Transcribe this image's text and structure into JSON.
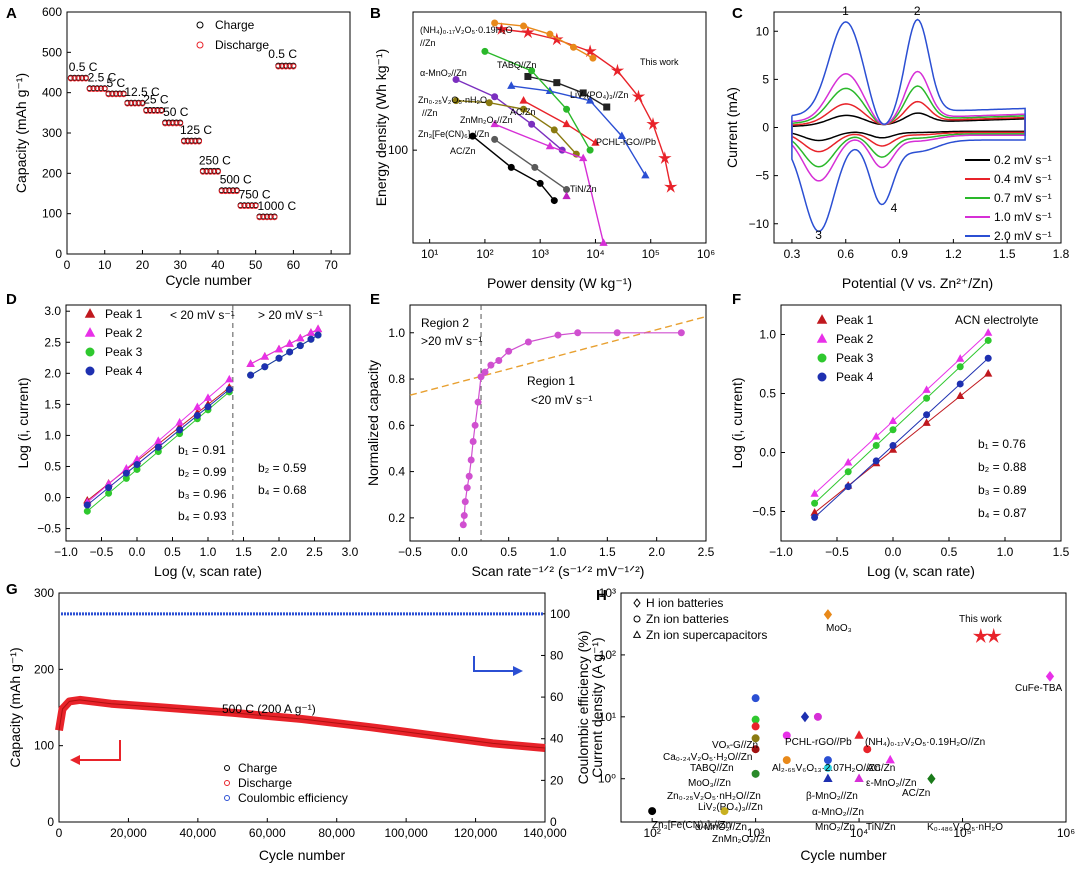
{
  "chart_data": [
    {
      "panel": "A",
      "type": "scatter",
      "xlabel": "Cycle number",
      "ylabel": "Capacity (mAh g⁻¹)",
      "xlim": [
        0,
        75
      ],
      "ylim": [
        0,
        600
      ],
      "xticks": [
        0,
        10,
        20,
        30,
        40,
        50,
        60,
        70
      ],
      "yticks": [
        0,
        100,
        200,
        300,
        400,
        500,
        600
      ],
      "legend": [
        "Charge",
        "Discharge"
      ],
      "rates": [
        {
          "label": "0.5 C",
          "x0": 1,
          "x1": 5,
          "value": 436
        },
        {
          "label": "2.5 C",
          "x0": 6,
          "x1": 10,
          "value": 410
        },
        {
          "label": "5 C",
          "x0": 11,
          "x1": 15,
          "value": 397
        },
        {
          "label": "12.5 C",
          "x0": 16,
          "x1": 20,
          "value": 374
        },
        {
          "label": "25 C",
          "x0": 21,
          "x1": 25,
          "value": 356
        },
        {
          "label": "50 C",
          "x0": 26,
          "x1": 30,
          "value": 325
        },
        {
          "label": "125 C",
          "x0": 31,
          "x1": 35,
          "value": 280
        },
        {
          "label": "250 C",
          "x0": 36,
          "x1": 40,
          "value": 205
        },
        {
          "label": "500 C",
          "x0": 41,
          "x1": 45,
          "value": 157
        },
        {
          "label": "750 C",
          "x0": 46,
          "x1": 50,
          "value": 120
        },
        {
          "label": "1000 C",
          "x0": 51,
          "x1": 55,
          "value": 92
        },
        {
          "label": "0.5 C",
          "x0": 56,
          "x1": 60,
          "value": 466
        }
      ]
    },
    {
      "panel": "B",
      "type": "line",
      "xlabel": "Power density (W kg⁻¹)",
      "ylabel": "Energy density (Wh kg⁻¹)",
      "xscale": "log",
      "yscale": "log",
      "xlim": [
        5,
        1000000
      ],
      "ylim": [
        30,
        600
      ],
      "xticks": [
        "10¹",
        "10²",
        "10³",
        "10⁴",
        "10⁵",
        "10⁶"
      ],
      "yticks": [
        "100"
      ],
      "series": [
        {
          "name": "This work",
          "color": "#e8232a",
          "marker": "star",
          "x": [
            200,
            600,
            2000,
            8000,
            25000,
            60000,
            110000,
            180000,
            230000
          ],
          "y": [
            480,
            460,
            420,
            360,
            280,
            200,
            140,
            90,
            62
          ]
        },
        {
          "name": "(NH₄)₀.₁₇V₂O₅·0.19H₂O//Zn",
          "color": "#e8891a",
          "marker": "circle",
          "x": [
            150,
            500,
            1500,
            4000,
            9000
          ],
          "y": [
            520,
            500,
            450,
            380,
            330
          ]
        },
        {
          "name": "TABQ//Zn",
          "color": "#222222",
          "marker": "square",
          "x": [
            600,
            2000,
            6000,
            16000
          ],
          "y": [
            260,
            240,
            210,
            175
          ]
        },
        {
          "name": "LiV₂(PO₄)₃//Zn",
          "color": "#2b4fd3",
          "marker": "triangle",
          "x": [
            300,
            1500,
            8000,
            30000,
            80000
          ],
          "y": [
            230,
            215,
            190,
            120,
            72
          ]
        },
        {
          "name": "α-MnO₂//Zn",
          "color": "#7b2fbf",
          "marker": "circle",
          "x": [
            30,
            150,
            700,
            2500
          ],
          "y": [
            250,
            200,
            140,
            100
          ]
        },
        {
          "name": "Zn₀.₂₅V₂O₅·nH₂O//Zn",
          "color": "#8a7a10",
          "marker": "circle",
          "x": [
            30,
            120,
            500,
            1800,
            4500
          ],
          "y": [
            190,
            185,
            170,
            130,
            95
          ]
        },
        {
          "name": "PCHL-rGO//Pb",
          "color": "#e8232a",
          "marker": "triangle",
          "x": [
            500,
            3000,
            10000
          ],
          "y": [
            190,
            140,
            110
          ]
        },
        {
          "name": "AC/Zn",
          "color": "#2ab82a",
          "marker": "circle",
          "x": [
            100,
            700,
            3000,
            8000
          ],
          "y": [
            360,
            280,
            170,
            100
          ]
        },
        {
          "name": "ZnMn₂O₄//Zn",
          "color": "#d62fd6",
          "marker": "triangle",
          "x": [
            150,
            1500,
            6000,
            14000
          ],
          "y": [
            140,
            105,
            90,
            30
          ]
        },
        {
          "name": "Zn₃[Fe(CN)₆]₂//Zn",
          "color": "#000000",
          "marker": "circle",
          "x": [
            60,
            300,
            1000,
            1800
          ],
          "y": [
            120,
            80,
            65,
            52
          ]
        },
        {
          "name": "AC/Zn",
          "color": "#5a5a5a",
          "marker": "circle",
          "x": [
            150,
            800,
            3000
          ],
          "y": [
            115,
            80,
            60
          ]
        },
        {
          "name": "TiN/Zn",
          "color": "#c020c0",
          "marker": "triangle",
          "x": [
            3000
          ],
          "y": [
            55
          ]
        }
      ],
      "labels": [
        "(NH₄)₀.₁₇V₂O₅·0.19H₂O",
        "//Zn",
        "This work",
        "TABQ//Zn",
        "α-MnO₂//Zn",
        "LiV₂(PO₄)₃//Zn",
        "Zn₀.₂₅V₂O₅·nH₂O",
        "//Zn",
        "AC/Zn",
        "ZnMn₂O₄//Zn",
        "Zn₃[Fe(CN)₆]₂//Zn",
        "PCHL-rGO//Pb",
        "AC/Zn",
        "TiN/Zn"
      ]
    },
    {
      "panel": "C",
      "type": "line",
      "xlabel": "Potential (V vs. Zn²⁺/Zn)",
      "ylabel": "Current (mA)",
      "xlim": [
        0.2,
        1.8
      ],
      "ylim": [
        -12,
        12
      ],
      "xticks": [
        0.3,
        0.6,
        0.9,
        1.2,
        1.5,
        1.8
      ],
      "yticks": [
        -10,
        -5,
        0,
        5,
        10
      ],
      "peak_labels": [
        "1",
        "2",
        "3",
        "4"
      ],
      "series": [
        {
          "name": "0.2 mV s⁻¹",
          "color": "#000000",
          "scale": 0.1
        },
        {
          "name": "0.4 mV s⁻¹",
          "color": "#e8232a",
          "scale": 0.21
        },
        {
          "name": "0.7 mV s⁻¹",
          "color": "#2ab82a",
          "scale": 0.36
        },
        {
          "name": "1.0 mV s⁻¹",
          "color": "#d62fd6",
          "scale": 0.5
        },
        {
          "name": "2.0 mV s⁻¹",
          "color": "#2b4fd3",
          "scale": 1.0
        }
      ],
      "peaks": {
        "ox": [
          [
            0.6,
            10.8
          ],
          [
            1.0,
            10.8
          ]
        ],
        "red": [
          [
            0.45,
            -10.5
          ],
          [
            0.8,
            -7.5
          ]
        ]
      }
    },
    {
      "panel": "D",
      "type": "scatter",
      "xlabel": "Log (v, scan rate)",
      "ylabel": "Log (i, current)",
      "xlim": [
        -1.0,
        3.0
      ],
      "ylim": [
        -0.7,
        3.1
      ],
      "xticks": [
        -1.0,
        -0.5,
        0.0,
        0.5,
        1.0,
        1.5,
        2.0,
        2.5,
        3.0
      ],
      "yticks": [
        -0.5,
        0.0,
        0.5,
        1.0,
        1.5,
        2.0,
        2.5,
        3.0
      ],
      "region_labels": [
        "< 20 mV s⁻¹",
        "> 20 mV s⁻¹"
      ],
      "divider_x": 1.35,
      "slopes_low": [
        "b₁ = 0.91",
        "b₂ = 0.99",
        "b₃ = 0.96",
        "b₄ = 0.93"
      ],
      "slopes_high": [
        "b₂ = 0.59",
        "b₄ = 0.68"
      ],
      "series": [
        {
          "name": "Peak 1",
          "color": "#c0181e",
          "marker": "triangle",
          "slope": 0.91,
          "y0": -0.05,
          "slope_h": 0.59,
          "y0h": 2.15
        },
        {
          "name": "Peak 2",
          "color": "#e830e8",
          "marker": "triangle",
          "slope": 0.99,
          "y0": -0.08,
          "slope_h": 0.59,
          "y0h": 2.15
        },
        {
          "name": "Peak 3",
          "color": "#2ec82e",
          "marker": "circle",
          "slope": 0.96,
          "y0": -0.22,
          "slope_h": 0.68,
          "y0h": 1.97
        },
        {
          "name": "Peak 4",
          "color": "#1e30b0",
          "marker": "circle",
          "slope": 0.93,
          "y0": -0.12,
          "slope_h": 0.68,
          "y0h": 1.97
        }
      ]
    },
    {
      "panel": "E",
      "type": "scatter",
      "xlabel": "Scan rate⁻¹ᐟ² (s⁻¹ᐟ² mV⁻¹ᐟ²)",
      "ylabel": "Normalized capacity",
      "xlim": [
        -0.5,
        2.5
      ],
      "ylim": [
        0.1,
        1.12
      ],
      "xticks": [
        -0.5,
        0.0,
        0.5,
        1.0,
        1.5,
        2.0,
        2.5
      ],
      "yticks": [
        0.2,
        0.4,
        0.6,
        0.8,
        1.0
      ],
      "region_labels": [
        "Region 2",
        ">20 mV s⁻¹",
        "Region 1",
        "<20 mV s⁻¹"
      ],
      "divider_x": 0.22,
      "x": [
        0.04,
        0.05,
        0.06,
        0.08,
        0.1,
        0.12,
        0.14,
        0.16,
        0.19,
        0.22,
        0.26,
        0.32,
        0.4,
        0.5,
        0.7,
        1.0,
        1.2,
        1.6,
        2.25
      ],
      "y": [
        0.17,
        0.21,
        0.27,
        0.33,
        0.38,
        0.45,
        0.53,
        0.6,
        0.7,
        0.81,
        0.83,
        0.86,
        0.88,
        0.92,
        0.96,
        0.99,
        1.0,
        1.0,
        1.0
      ],
      "trend": [
        [
          -0.5,
          0.73
        ],
        [
          2.5,
          1.07
        ]
      ]
    },
    {
      "panel": "F",
      "type": "scatter",
      "xlabel": "Log (v, scan rate)",
      "ylabel": "Log (i, current)",
      "xlim": [
        -1.0,
        1.5
      ],
      "ylim": [
        -0.75,
        1.25
      ],
      "xticks": [
        -1.0,
        -0.5,
        0.0,
        0.5,
        1.0,
        1.5
      ],
      "yticks": [
        -0.5,
        0.0,
        0.5,
        1.0
      ],
      "annotation": "ACN electrolyte",
      "slopes": [
        "b₁ = 0.76",
        "b₂ = 0.88",
        "b₃ = 0.89",
        "b₄ = 0.87"
      ],
      "x": [
        -0.7,
        -0.4,
        -0.15,
        0.0,
        0.3,
        0.6,
        0.85
      ],
      "series": [
        {
          "name": "Peak 1",
          "color": "#c0181e",
          "marker": "triangle",
          "slope": 0.76,
          "y0": -0.51
        },
        {
          "name": "Peak 2",
          "color": "#e830e8",
          "marker": "triangle",
          "slope": 0.88,
          "y0": -0.35
        },
        {
          "name": "Peak 3",
          "color": "#2ec82e",
          "marker": "circle",
          "slope": 0.89,
          "y0": -0.43
        },
        {
          "name": "Peak 4",
          "color": "#1e30b0",
          "marker": "circle",
          "slope": 0.87,
          "y0": -0.55
        }
      ]
    },
    {
      "panel": "G",
      "type": "line",
      "xlabel": "Cycle number",
      "ylabel": "Capacity (mAh g⁻¹)",
      "ylabel2": "Coulombic efficiency (%)",
      "xlim": [
        0,
        140000
      ],
      "ylim": [
        0,
        300
      ],
      "ylim2": [
        0,
        110
      ],
      "xticks": [
        "0",
        "20,000",
        "40,000",
        "60,000",
        "80,000",
        "100,000",
        "120,000",
        "140,000"
      ],
      "yticks": [
        0,
        100,
        200,
        300
      ],
      "yticks2": [
        0,
        20,
        40,
        60,
        80,
        100
      ],
      "annotation": "500 C (200 A g⁻¹)",
      "legend": [
        "Charge",
        "Discharge",
        "Coulombic efficiency"
      ],
      "capacity": {
        "x": [
          0,
          1000,
          3000,
          6000,
          15000,
          30000,
          50000,
          70000,
          90000,
          110000,
          125000,
          140000
        ],
        "y": [
          120,
          148,
          158,
          160,
          155,
          150,
          143,
          135,
          124,
          112,
          103,
          97
        ]
      },
      "efficiency": 100
    },
    {
      "panel": "H",
      "type": "scatter",
      "xlabel": "Cycle number",
      "ylabel": "Current density (A g⁻¹)",
      "xscale": "log",
      "yscale": "log",
      "xlim": [
        50,
        1000000
      ],
      "ylim": [
        0.2,
        1000
      ],
      "xticks": [
        "10²",
        "10³",
        "10⁴",
        "10⁵",
        "10⁶"
      ],
      "yticks": [
        "10⁰",
        "10¹",
        "10²",
        "10³"
      ],
      "legend": [
        "H ion batteries",
        "Zn ion batteries",
        "Zn ion supercapacitors"
      ],
      "points": [
        {
          "label": "This work",
          "x": 150000,
          "y": 200,
          "color": "#e8232a",
          "marker": "star"
        },
        {
          "label": "",
          "x": 200000,
          "y": 200,
          "color": "#e8232a",
          "marker": "star"
        },
        {
          "label": "MoO₃",
          "x": 5000,
          "y": 450,
          "color": "#e8891a",
          "marker": "diamond"
        },
        {
          "label": "CuFe-TBA",
          "x": 700000,
          "y": 45,
          "color": "#e830e8",
          "marker": "diamond"
        },
        {
          "label": "VOₓ-G//Zn",
          "x": 1000,
          "y": 20,
          "color": "#2b4fd3",
          "marker": "circle"
        },
        {
          "label": "PCHL-rGO//Pb",
          "x": 3000,
          "y": 10,
          "color": "#1e30b0",
          "marker": "diamond"
        },
        {
          "label": "(NH₄)₀.₁₇V₂O₅·0.19H₂O//Zn",
          "x": 4000,
          "y": 10,
          "color": "#d62fd6",
          "marker": "circle"
        },
        {
          "label": "Ca₀.₂₄V₂O₅·H₂O//Zn",
          "x": 1000,
          "y": 9,
          "color": "#2ec82e",
          "marker": "circle"
        },
        {
          "label": "TABQ//Zn",
          "x": 1000,
          "y": 7,
          "color": "#e8232a",
          "marker": "circle"
        },
        {
          "label": "Al₂.₆₅V₆O₁₃·2.07H₂O//Zn",
          "x": 2000,
          "y": 5,
          "color": "#e830e8",
          "marker": "circle"
        },
        {
          "label": "AC/Zn",
          "x": 10000,
          "y": 5,
          "color": "#e8232a",
          "marker": "triangle"
        },
        {
          "label": "MoO₃//Zn",
          "x": 1000,
          "y": 4.5,
          "color": "#8a7a10",
          "marker": "circle"
        },
        {
          "label": "ε-MnO₂//Zn",
          "x": 12000,
          "y": 3,
          "color": "#e8232a",
          "marker": "circle"
        },
        {
          "label": "Zn₀.₂₅V₂O₅·nH₂O//Zn",
          "x": 1000,
          "y": 3,
          "color": "#a01010",
          "marker": "circle"
        },
        {
          "label": "β-MnO₂//Zn",
          "x": 5000,
          "y": 2,
          "color": "#2b4fd3",
          "marker": "circle"
        },
        {
          "label": "AC/Zn",
          "x": 20000,
          "y": 2,
          "color": "#e830e8",
          "marker": "triangle"
        },
        {
          "label": "LiV₂(PO₄)₃//Zn",
          "x": 2000,
          "y": 2,
          "color": "#e8891a",
          "marker": "circle"
        },
        {
          "label": "α-MnO₂//Zn",
          "x": 5000,
          "y": 1.5,
          "color": "#2bd3e0",
          "marker": "circle"
        },
        {
          "label": "α-MnO₂//Zn",
          "x": 1000,
          "y": 1.2,
          "color": "#2a8a2a",
          "marker": "circle"
        },
        {
          "label": "MnO₂/Zn",
          "x": 5000,
          "y": 1,
          "color": "#1e30b0",
          "marker": "triangle"
        },
        {
          "label": "TiN/Zn",
          "x": 10000,
          "y": 1,
          "color": "#d62fd6",
          "marker": "triangle"
        },
        {
          "label": "K₀.₄₈₆V₂O₅·nH₂O",
          "x": 50000,
          "y": 1,
          "color": "#1a7a1a",
          "marker": "diamond"
        },
        {
          "label": "Zn₃[Fe(CN)₆]₂//Zn",
          "x": 100,
          "y": 0.3,
          "color": "#000000",
          "marker": "circle"
        },
        {
          "label": "ZnMn₂O₄//Zn",
          "x": 500,
          "y": 0.3,
          "color": "#c8b020",
          "marker": "circle"
        }
      ]
    }
  ]
}
